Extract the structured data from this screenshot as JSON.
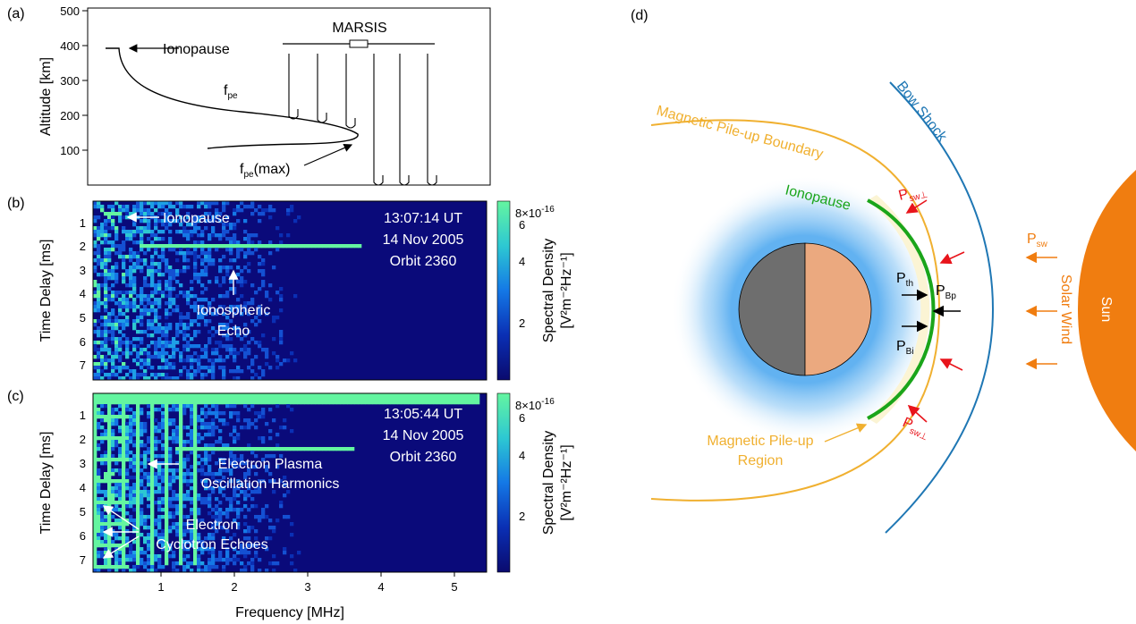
{
  "panels": {
    "a": {
      "label": "(a)",
      "ylabel": "Altitude [km]",
      "yticks": [
        "100",
        "200",
        "300",
        "400",
        "500"
      ],
      "instrument": "MARSIS",
      "ionopause_label": "Ionopause",
      "fpe_label": "f",
      "fpe_sub": "pe",
      "fpemax_label": "f",
      "fpemax_sub": "pe",
      "fpemax_suffix": "(max)"
    },
    "b": {
      "label": "(b)",
      "ylabel": "Time Delay [ms]",
      "yticks": [
        "1",
        "2",
        "3",
        "4",
        "5",
        "6",
        "7"
      ],
      "time": "13:07:14 UT",
      "date": "14 Nov 2005",
      "orbit": "Orbit 2360",
      "ann_ionopause": "Ionopause",
      "ann_echo_1": "Ionospheric",
      "ann_echo_2": "Echo",
      "colorbar": {
        "title": "Spectral Density",
        "units": "[V²m⁻²Hz⁻¹]",
        "top_label": "8",
        "top_exp_base": "×10",
        "top_exp": "-16",
        "ticks": [
          "6",
          "4",
          "2"
        ]
      }
    },
    "c": {
      "label": "(c)",
      "ylabel": "Time Delay [ms]",
      "yticks": [
        "1",
        "2",
        "3",
        "4",
        "5",
        "6",
        "7"
      ],
      "time": "13:05:44 UT",
      "date": "14 Nov 2005",
      "orbit": "Orbit 2360",
      "ann_plasma_1": "Electron Plasma",
      "ann_plasma_2": "Oscillation Harmonics",
      "ann_cyc_1": "Electron",
      "ann_cyc_2": "Cyclotron Echoes",
      "xticks": [
        "1",
        "2",
        "3",
        "4",
        "5"
      ],
      "xlabel": "Frequency [MHz]",
      "colorbar": {
        "title": "Spectral Density",
        "units": "[V²m⁻²Hz⁻¹]",
        "top_label": "8",
        "top_exp_base": "×10",
        "top_exp": "-16",
        "ticks": [
          "6",
          "4",
          "2"
        ]
      }
    },
    "d": {
      "label": "(d)",
      "bow_shock": "Bow Shock",
      "mpb": "Magnetic Pile-up Boundary",
      "ionopause": "Ionopause",
      "mpr_1": "Magnetic Pile-up",
      "mpr_2": "Region",
      "sun": "Sun",
      "solar_wind": "Solar Wind",
      "p_sw": "P",
      "p_sw_sub": "sw",
      "p_swperp_sub": "sw⊥",
      "p_th": "P",
      "p_th_sub": "th",
      "p_bp": "P",
      "p_bp_sub": "Bp",
      "p_bi": "P",
      "p_bi_sub": "Bi",
      "colors": {
        "bow_shock": "#1f77b4",
        "mpb": "#f0b030",
        "ionopause": "#1aa51a",
        "sun": "#f07d10",
        "pressure": "#e8141b",
        "solar_wind": "#f07d10"
      }
    }
  }
}
